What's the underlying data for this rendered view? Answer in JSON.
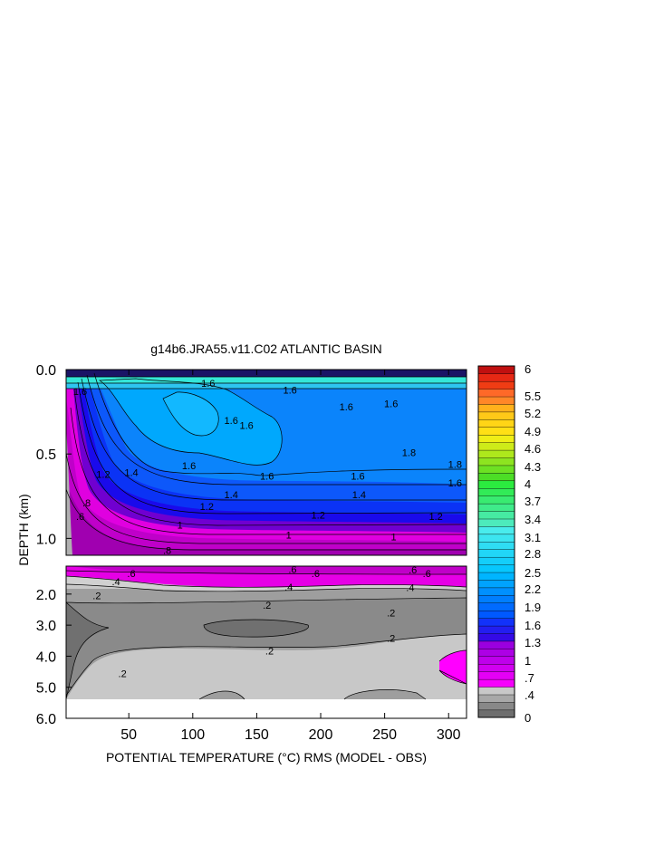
{
  "chart_data": {
    "type": "heatmap",
    "title": "g14b6.JRA55.v11.C02 ATLANTIC BASIN",
    "xlabel": "POTENTIAL TEMPERATURE (°C) RMS (MODEL - OBS)",
    "ylabel": "DEPTH (km)",
    "x_ticks": [
      50,
      100,
      150,
      200,
      250,
      300
    ],
    "xlim": [
      1,
      314
    ],
    "upper_panel": {
      "ylim": [
        0.0,
        1.1
      ],
      "y_ticks": [
        "0.0",
        "0.5",
        "1.0"
      ]
    },
    "lower_panel": {
      "ylim": [
        1.1,
        6.0
      ],
      "y_ticks": [
        "2.0",
        "3.0",
        "4.0",
        "5.0",
        "6.0"
      ]
    },
    "colorbar": {
      "levels": [
        0,
        0.1,
        0.2,
        0.3,
        0.4,
        0.5,
        0.6,
        0.7,
        0.8,
        0.9,
        1.0,
        1.1,
        1.2,
        1.3,
        1.4,
        1.5,
        1.6,
        1.7,
        1.8,
        1.9,
        2.0,
        2.1,
        2.2,
        2.3,
        2.4,
        2.5,
        2.6,
        2.7,
        2.8,
        2.9,
        3.0,
        3.1,
        3.2,
        3.3,
        3.4,
        3.5,
        3.6,
        3.7,
        3.8,
        3.9,
        4.0,
        4.3,
        4.6,
        4.9,
        5.2,
        5.5,
        6
      ],
      "labels": [
        "6",
        "5.5",
        "5.2",
        "4.9",
        "4.6",
        "4.3",
        "4",
        "3.7",
        "3.4",
        "3.1",
        "2.8",
        "2.5",
        "2.2",
        "1.9",
        "1.6",
        "1.3",
        "1",
        ".7",
        ".4",
        "0"
      ]
    },
    "contour_labels_upper": [
      {
        "text": "1.6",
        "x": 12,
        "y": 0.13
      },
      {
        "text": "1.6",
        "x": 112,
        "y": 0.08
      },
      {
        "text": "1.6",
        "x": 176,
        "y": 0.12
      },
      {
        "text": "1.6",
        "x": 220,
        "y": 0.22
      },
      {
        "text": "1.6",
        "x": 255,
        "y": 0.2
      },
      {
        "text": "1.6",
        "x": 130,
        "y": 0.3
      },
      {
        "text": "1.6",
        "x": 142,
        "y": 0.33
      },
      {
        "text": "1.6",
        "x": 97,
        "y": 0.57
      },
      {
        "text": "1.6",
        "x": 158,
        "y": 0.63
      },
      {
        "text": "1.6",
        "x": 229,
        "y": 0.63
      },
      {
        "text": "1.8",
        "x": 269,
        "y": 0.49
      },
      {
        "text": "1.8",
        "x": 305,
        "y": 0.56
      },
      {
        "text": "1.6",
        "x": 305,
        "y": 0.67
      },
      {
        "text": "1.4",
        "x": 52,
        "y": 0.61
      },
      {
        "text": "1.4",
        "x": 130,
        "y": 0.74
      },
      {
        "text": "1.4",
        "x": 230,
        "y": 0.74
      },
      {
        "text": "1.2",
        "x": 30,
        "y": 0.62
      },
      {
        "text": "1.2",
        "x": 111,
        "y": 0.81
      },
      {
        "text": "1.2",
        "x": 198,
        "y": 0.86
      },
      {
        "text": "1.2",
        "x": 290,
        "y": 0.87
      },
      {
        "text": "1",
        "x": 90,
        "y": 0.92
      },
      {
        "text": "1",
        "x": 175,
        "y": 0.98
      },
      {
        "text": "1",
        "x": 257,
        "y": 0.99
      },
      {
        "text": ".8",
        "x": 17,
        "y": 0.79
      },
      {
        "text": ".6",
        "x": 12,
        "y": 0.87
      },
      {
        "text": ".8",
        "x": 80,
        "y": 1.07
      }
    ],
    "contour_labels_lower": [
      {
        "text": ".6",
        "x": 52,
        "y": 1.33
      },
      {
        "text": ".6",
        "x": 178,
        "y": 1.2
      },
      {
        "text": ".6",
        "x": 196,
        "y": 1.33
      },
      {
        "text": ".6",
        "x": 272,
        "y": 1.22
      },
      {
        "text": ".6",
        "x": 283,
        "y": 1.33
      },
      {
        "text": ".4",
        "x": 40,
        "y": 1.6
      },
      {
        "text": ".4",
        "x": 175,
        "y": 1.77
      },
      {
        "text": ".4",
        "x": 270,
        "y": 1.78
      },
      {
        "text": ".2",
        "x": 25,
        "y": 2.05
      },
      {
        "text": ".2",
        "x": 158,
        "y": 2.35
      },
      {
        "text": ".2",
        "x": 255,
        "y": 2.6
      },
      {
        "text": ".2",
        "x": 160,
        "y": 3.82
      },
      {
        "text": ".2",
        "x": 255,
        "y": 3.42
      },
      {
        "text": ".2",
        "x": 45,
        "y": 4.55
      }
    ]
  }
}
